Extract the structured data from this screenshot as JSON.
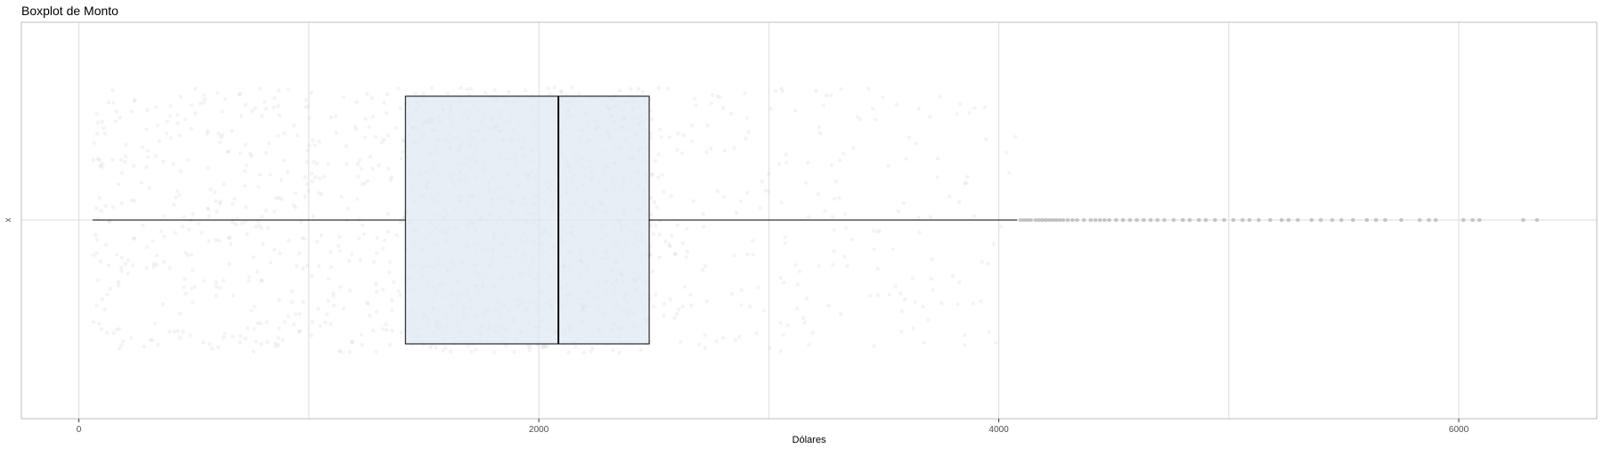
{
  "chart_data": {
    "type": "boxplot",
    "title": "Boxplot de Monto",
    "xlabel": "Dólares",
    "ylabel": "x",
    "xlim": [
      -250,
      6600
    ],
    "x_ticks": [
      0,
      2000,
      4000,
      6000
    ],
    "x_tick_labels": [
      "0",
      "2000",
      "4000",
      "6000"
    ],
    "y_categories": [
      "x"
    ],
    "grid": true,
    "legend": "none",
    "box": {
      "min": 60,
      "q1": 1420,
      "median": 2085,
      "q3": 2480,
      "whisker_high": 4080
    },
    "outliers": [
      4095,
      4110,
      4125,
      4140,
      4160,
      4175,
      4190,
      4205,
      4220,
      4235,
      4250,
      4265,
      4280,
      4300,
      4320,
      4340,
      4370,
      4400,
      4420,
      4440,
      4460,
      4480,
      4510,
      4540,
      4570,
      4600,
      4630,
      4660,
      4690,
      4720,
      4760,
      4800,
      4830,
      4870,
      4900,
      4940,
      4980,
      5020,
      5060,
      5090,
      5130,
      5180,
      5230,
      5260,
      5300,
      5360,
      5400,
      5450,
      5490,
      5540,
      5600,
      5640,
      5680,
      5750,
      5830,
      5870,
      5900,
      6020,
      6060,
      6090,
      6280,
      6340
    ],
    "colors": {
      "box_fill": "#dfe7f3",
      "jitter": "#c8c8c8",
      "outlier": "#8c8c8c",
      "grid": "#dcdcdc",
      "line": "#000000",
      "panel_border": "#bdbdbd"
    }
  }
}
